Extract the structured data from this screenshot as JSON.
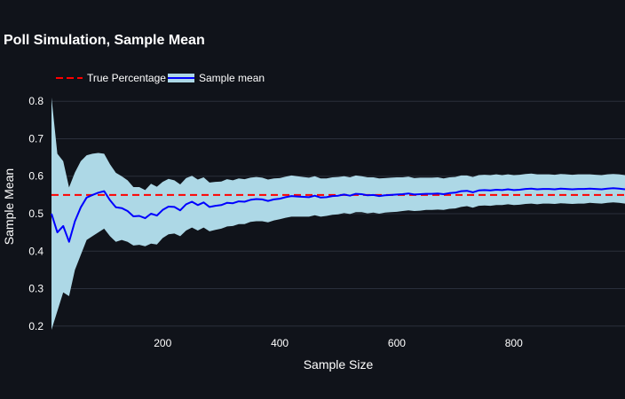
{
  "colors": {
    "background": "#10131a",
    "band": "#add8e6",
    "mean_line": "#0000ff",
    "true_line": "#ff0000",
    "grid": "#2a2f3b",
    "text": "#ffffff"
  },
  "chart_data": {
    "type": "line",
    "title": "Poll Simulation, Sample Mean",
    "xlabel": "Sample Size",
    "ylabel": "Sample Mean",
    "xlim": [
      10,
      990
    ],
    "ylim": [
      0.19,
      0.81
    ],
    "x_ticks": [
      200,
      400,
      600,
      800
    ],
    "y_ticks": [
      0.2,
      0.3,
      0.4,
      0.5,
      0.6,
      0.7,
      0.8
    ],
    "grid": "horizontal",
    "legend_placement": "top-left",
    "legend": [
      "True Percentage",
      "Sample mean"
    ],
    "true_percentage": 0.55,
    "series": [
      {
        "name": "Sample mean",
        "x": [
          10,
          20,
          30,
          40,
          50,
          60,
          70,
          80,
          90,
          100,
          110,
          120,
          130,
          140,
          150,
          160,
          170,
          180,
          190,
          200,
          210,
          220,
          230,
          240,
          250,
          260,
          270,
          280,
          290,
          300,
          310,
          320,
          330,
          340,
          350,
          360,
          370,
          380,
          390,
          400,
          410,
          420,
          430,
          440,
          450,
          460,
          470,
          480,
          490,
          500,
          510,
          520,
          530,
          540,
          550,
          560,
          570,
          580,
          590,
          600,
          610,
          620,
          630,
          640,
          650,
          660,
          670,
          680,
          690,
          700,
          710,
          720,
          730,
          740,
          750,
          760,
          770,
          780,
          790,
          800,
          810,
          820,
          830,
          840,
          850,
          860,
          870,
          880,
          890,
          900,
          910,
          920,
          930,
          940,
          950,
          960,
          970,
          980,
          990
        ],
        "mean": [
          0.5,
          0.45,
          0.467,
          0.425,
          0.48,
          0.517,
          0.543,
          0.55,
          0.556,
          0.56,
          0.536,
          0.517,
          0.515,
          0.507,
          0.493,
          0.494,
          0.488,
          0.5,
          0.495,
          0.51,
          0.519,
          0.518,
          0.509,
          0.525,
          0.532,
          0.523,
          0.53,
          0.518,
          0.521,
          0.523,
          0.529,
          0.528,
          0.533,
          0.532,
          0.537,
          0.539,
          0.538,
          0.534,
          0.538,
          0.54,
          0.544,
          0.547,
          0.546,
          0.545,
          0.544,
          0.548,
          0.543,
          0.544,
          0.547,
          0.548,
          0.551,
          0.548,
          0.553,
          0.552,
          0.549,
          0.55,
          0.547,
          0.549,
          0.55,
          0.551,
          0.552,
          0.554,
          0.551,
          0.552,
          0.553,
          0.553,
          0.554,
          0.552,
          0.555,
          0.556,
          0.56,
          0.561,
          0.557,
          0.562,
          0.563,
          0.562,
          0.564,
          0.563,
          0.565,
          0.563,
          0.564,
          0.566,
          0.567,
          0.565,
          0.566,
          0.566,
          0.565,
          0.567,
          0.566,
          0.565,
          0.566,
          0.566,
          0.567,
          0.566,
          0.565,
          0.567,
          0.568,
          0.567,
          0.565
        ],
        "lower": [
          0.19,
          0.24,
          0.29,
          0.28,
          0.35,
          0.39,
          0.43,
          0.44,
          0.45,
          0.46,
          0.44,
          0.425,
          0.43,
          0.425,
          0.415,
          0.417,
          0.413,
          0.42,
          0.418,
          0.435,
          0.445,
          0.447,
          0.44,
          0.455,
          0.463,
          0.455,
          0.463,
          0.453,
          0.457,
          0.46,
          0.466,
          0.467,
          0.472,
          0.472,
          0.478,
          0.48,
          0.48,
          0.477,
          0.482,
          0.485,
          0.489,
          0.492,
          0.492,
          0.492,
          0.492,
          0.496,
          0.492,
          0.494,
          0.497,
          0.498,
          0.502,
          0.499,
          0.504,
          0.504,
          0.501,
          0.503,
          0.5,
          0.503,
          0.504,
          0.505,
          0.507,
          0.509,
          0.507,
          0.508,
          0.51,
          0.51,
          0.511,
          0.51,
          0.513,
          0.514,
          0.518,
          0.52,
          0.516,
          0.521,
          0.522,
          0.521,
          0.523,
          0.523,
          0.525,
          0.523,
          0.524,
          0.526,
          0.527,
          0.525,
          0.527,
          0.527,
          0.526,
          0.528,
          0.527,
          0.526,
          0.527,
          0.527,
          0.529,
          0.528,
          0.527,
          0.529,
          0.53,
          0.529,
          0.527
        ],
        "upper": [
          0.81,
          0.66,
          0.64,
          0.57,
          0.61,
          0.64,
          0.656,
          0.66,
          0.662,
          0.66,
          0.632,
          0.609,
          0.6,
          0.589,
          0.571,
          0.571,
          0.563,
          0.58,
          0.572,
          0.585,
          0.593,
          0.589,
          0.578,
          0.595,
          0.601,
          0.591,
          0.597,
          0.583,
          0.585,
          0.586,
          0.592,
          0.589,
          0.594,
          0.592,
          0.596,
          0.598,
          0.596,
          0.591,
          0.594,
          0.595,
          0.599,
          0.602,
          0.6,
          0.598,
          0.596,
          0.6,
          0.594,
          0.594,
          0.597,
          0.598,
          0.6,
          0.597,
          0.602,
          0.6,
          0.597,
          0.597,
          0.594,
          0.595,
          0.596,
          0.597,
          0.597,
          0.599,
          0.595,
          0.596,
          0.596,
          0.596,
          0.597,
          0.594,
          0.597,
          0.598,
          0.602,
          0.602,
          0.598,
          0.603,
          0.604,
          0.603,
          0.605,
          0.603,
          0.605,
          0.603,
          0.604,
          0.606,
          0.607,
          0.605,
          0.605,
          0.605,
          0.604,
          0.606,
          0.605,
          0.604,
          0.605,
          0.605,
          0.605,
          0.604,
          0.603,
          0.605,
          0.606,
          0.605,
          0.603
        ]
      }
    ]
  }
}
